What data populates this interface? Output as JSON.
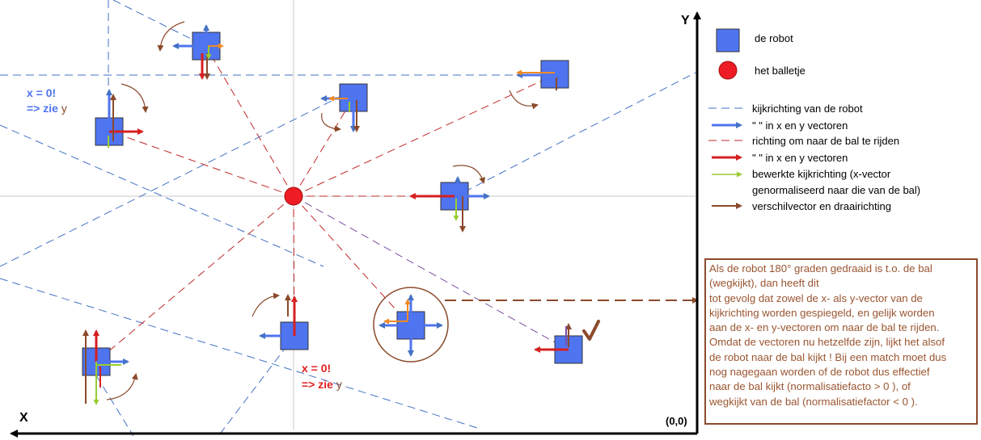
{
  "axes": {
    "x_label": "X",
    "y_label": "Y",
    "origin_label": "(0,0)"
  },
  "annotations": {
    "x_zero_1": "x = 0!",
    "see_y_1_prefix": "=> zie",
    "see_y_1_var": "y",
    "x_zero_2": "x = 0!",
    "see_y_2_prefix": "=> zie",
    "see_y_2_var": "y",
    "checkmark": "✓"
  },
  "legend": {
    "robot": "de robot",
    "ball": "het balletje",
    "view_dir": "kijkrichting van de robot",
    "view_vectors": "\" \" in x en y vectoren",
    "ball_dir": "richting om naar de bal te rijden",
    "ball_vectors": "\" \" in x en y vectoren",
    "processed_1": "bewerkte kijkrichting (x-vector",
    "processed_2": "genormaliseerd naar die van de bal)",
    "diff": "verschilvector en draairichting"
  },
  "colors": {
    "robot": "#4f74f0",
    "ball": "#ee1c24",
    "view": "#4472c4",
    "toward_ball": "#c0282a",
    "processed": "#99cc33",
    "diff": "#8b4a2b",
    "note_text": "#9a5530"
  },
  "note_lines": [
    "Als de robot 180° graden gedraaid is t.o. de bal",
    "(wegkijkt), dan  heeft dit",
    "tot gevolg dat zowel de x- als y-vector van de",
    "kijkrichting worden gespiegeld, en gelijk worden",
    "aan de x- en y-vectoren om naar de bal te rijden.",
    "Omdat de vectoren nu hetzelfde zijn, lijkt het alsof",
    "de robot naar de bal kijkt ! Bij een match moet dus",
    "nog nagegaan worden of de robot dus effectief",
    "naar de bal kijkt (normalisatiefacto > 0 ), of",
    "wegkijkt van de bal (normalisatiefactor < 0 )."
  ]
}
